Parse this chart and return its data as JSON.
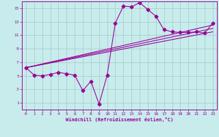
{
  "xlabel": "Windchill (Refroidissement éolien,°C)",
  "background_color": "#c8ecec",
  "grid_color": "#a0c8c8",
  "line_color": "#990099",
  "xlim": [
    -0.5,
    23.5
  ],
  "ylim": [
    0,
    16
  ],
  "xticks": [
    0,
    1,
    2,
    3,
    4,
    5,
    6,
    7,
    8,
    9,
    10,
    11,
    12,
    13,
    14,
    15,
    16,
    17,
    18,
    19,
    20,
    21,
    22,
    23
  ],
  "yticks": [
    1,
    3,
    5,
    7,
    9,
    11,
    13,
    15
  ],
  "curve1_x": [
    0,
    1,
    2,
    3,
    4,
    5,
    6,
    7,
    8,
    9,
    10,
    11,
    12,
    13,
    14,
    15,
    16,
    17,
    18,
    19,
    20,
    21,
    22,
    23
  ],
  "curve1_y": [
    6.2,
    5.1,
    5.0,
    5.2,
    5.5,
    5.3,
    5.1,
    2.8,
    4.2,
    0.8,
    5.1,
    12.8,
    15.3,
    15.2,
    15.8,
    14.8,
    13.8,
    11.8,
    11.5,
    11.4,
    11.4,
    11.5,
    11.3,
    12.8
  ],
  "line2_x": [
    0,
    23
  ],
  "line2_y": [
    6.2,
    11.5
  ],
  "line3_x": [
    0,
    23
  ],
  "line3_y": [
    6.2,
    12.0
  ],
  "line4_x": [
    0,
    23
  ],
  "line4_y": [
    6.2,
    12.5
  ],
  "marker": "D",
  "markersize": 2.5,
  "linewidth": 0.8
}
